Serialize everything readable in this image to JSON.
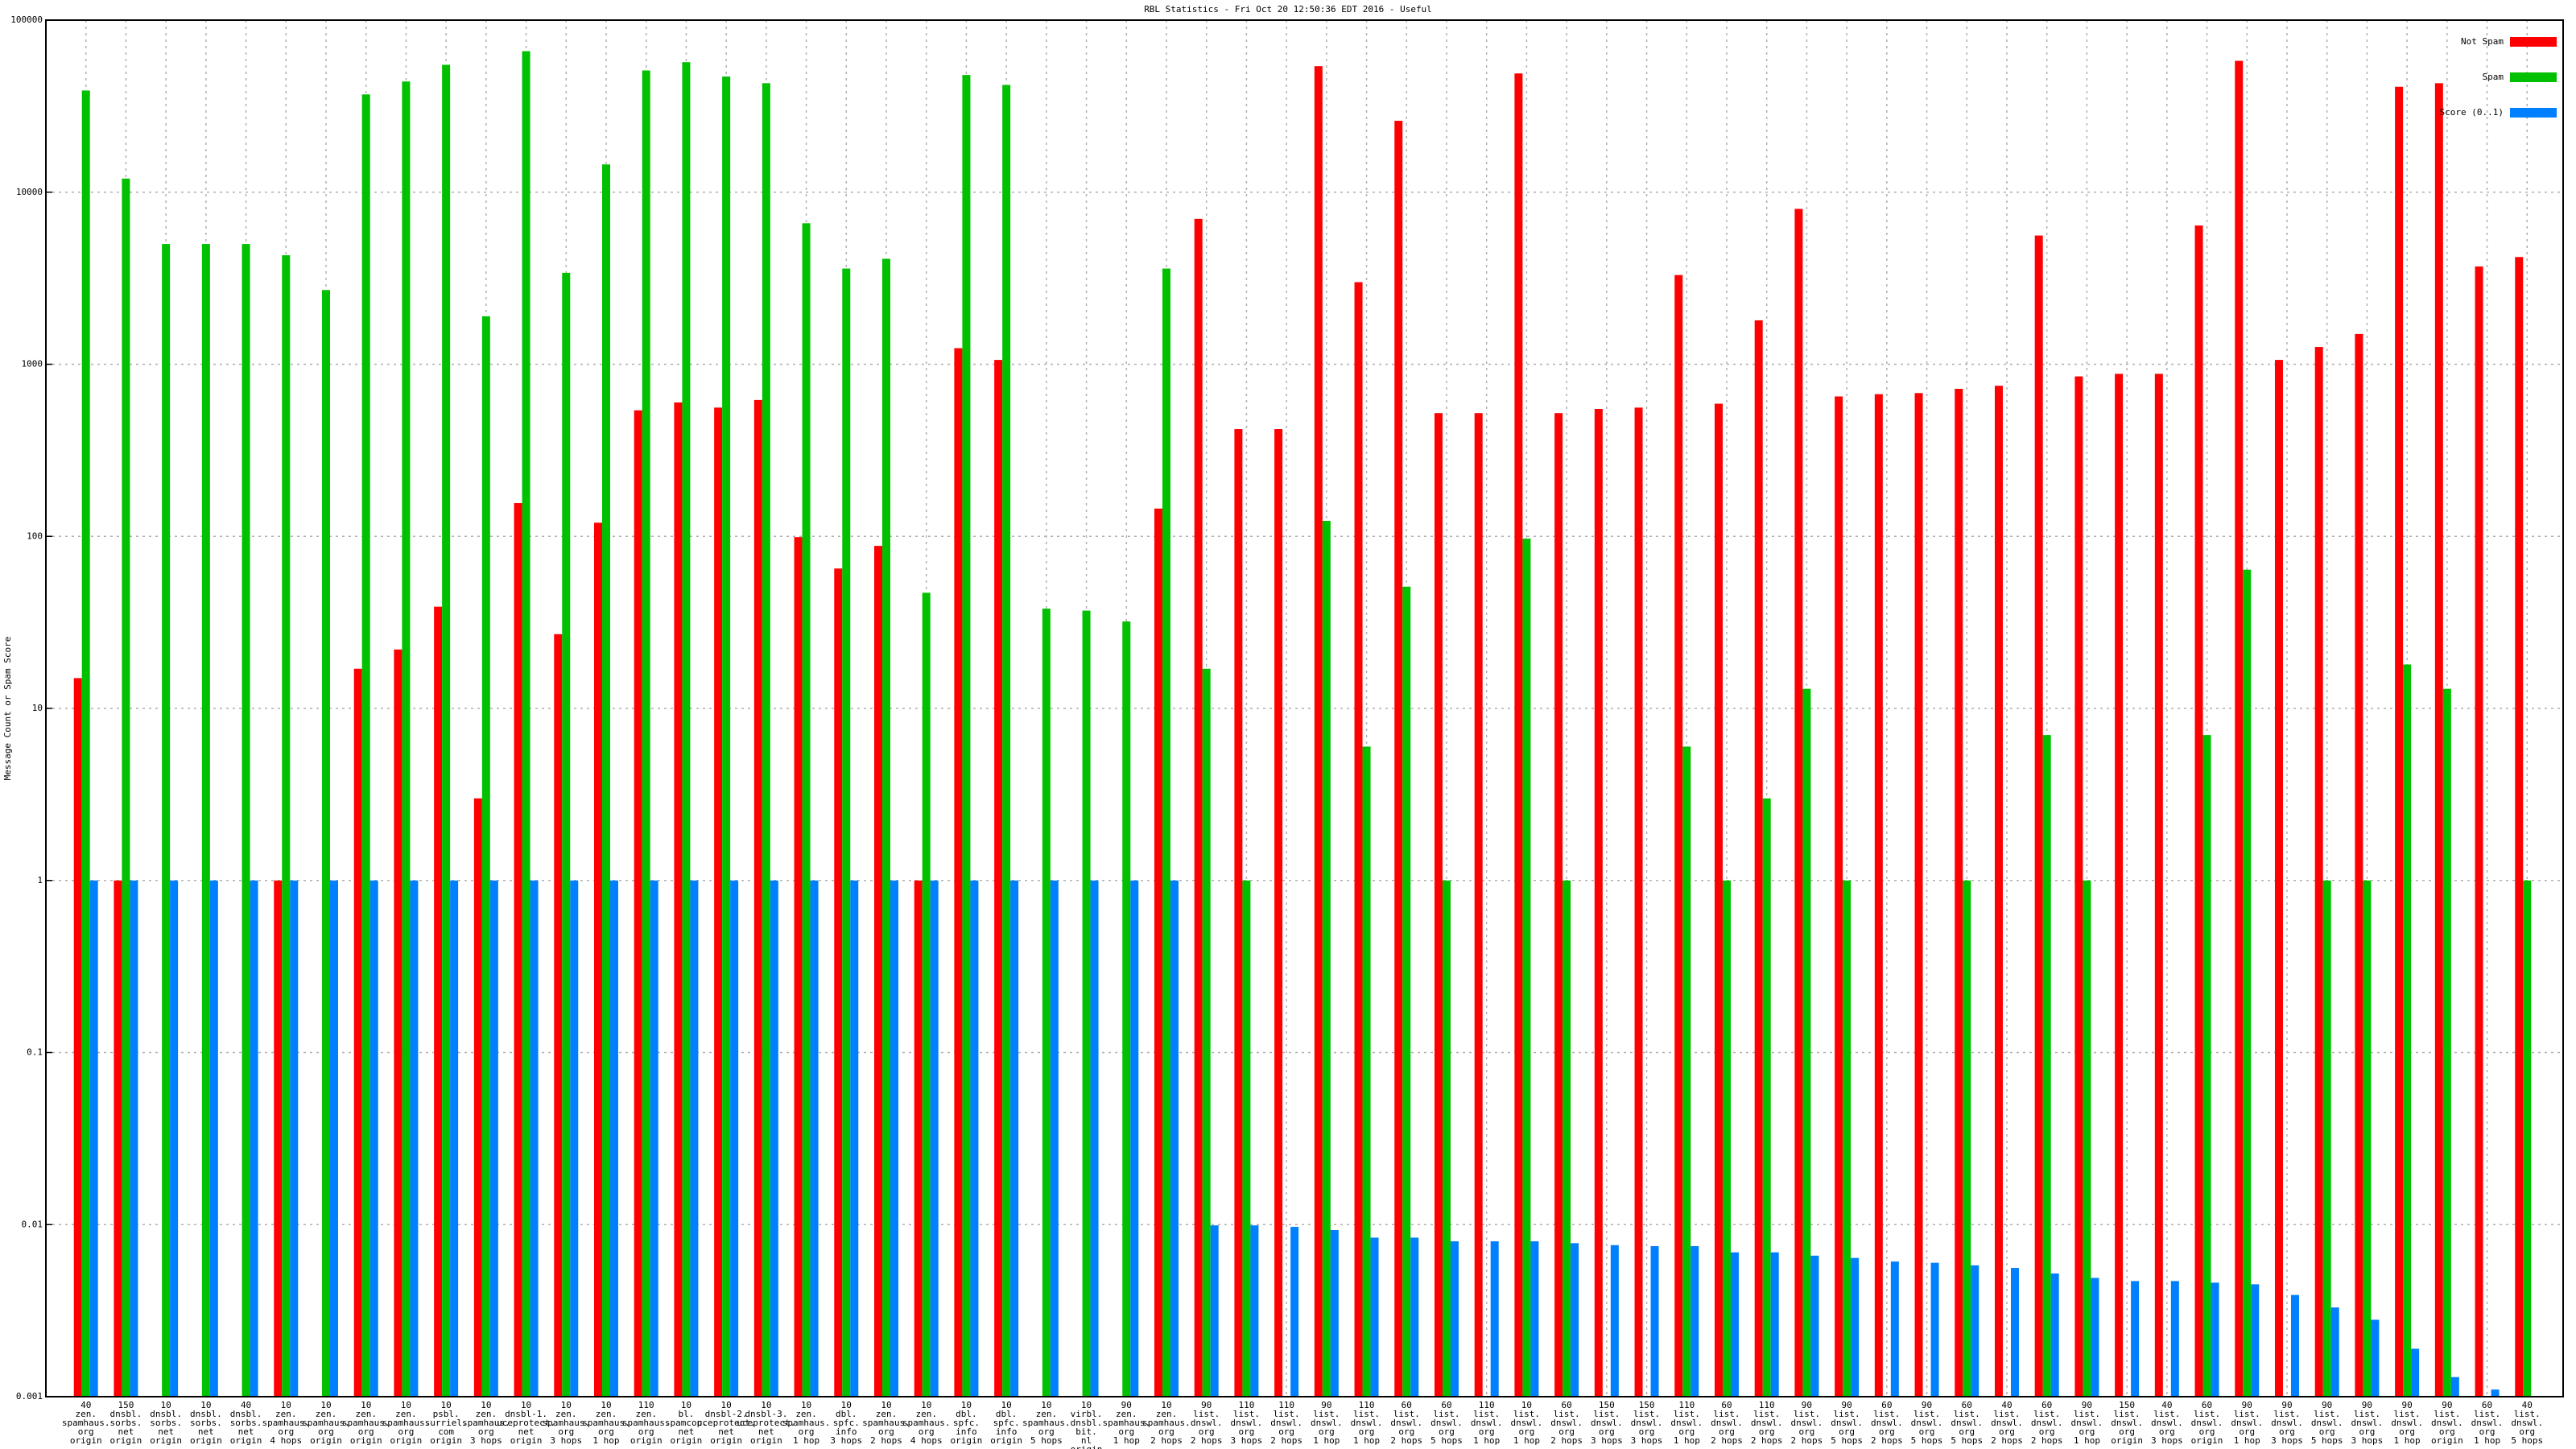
{
  "chart_data": {
    "type": "bar",
    "title": "RBL Statistics - Fri Oct 20 12:50:36 EDT 2016 - Useful",
    "y_label": "Message Count or Spam Score",
    "log_scale": true,
    "grid": true,
    "legend": "upper right",
    "ylim": [
      0.001,
      100000
    ],
    "yticks": [
      0.001,
      0.01,
      0.1,
      1,
      10,
      100,
      1000,
      10000,
      100000
    ],
    "categories": [
      "40\nzen.\nspamhaus.\norg\norigin",
      "150\ndnsbl.\nsorbs.\nnet\norigin",
      "10\ndnsbl.\nsorbs.\nnet\norigin",
      "10\ndnsbl.\nsorbs.\nnet\norigin",
      "40\ndnsbl.\nsorbs.\nnet\norigin",
      "10\nzen.\nspamhaus.\norg\n4 hops",
      "10\nzen.\nspamhaus.\norg\norigin",
      "10\nzen.\nspamhaus.\norg\norigin",
      "10\nzen.\nspamhaus.\norg\norigin",
      "10\npsbl.\nsurriel.\ncom\norigin",
      "10\nzen.\nspamhaus.\norg\n3 hops",
      "10\ndnsbl-1.\nuceprotect.\nnet\norigin",
      "10\nzen.\nspamhaus.\norg\n3 hops",
      "10\nzen.\nspamhaus.\norg\n1 hop",
      "110\nzen.\nspamhaus.\norg\norigin",
      "10\nbl.\nspamcop.\nnet\norigin",
      "10\ndnsbl-2.\nuceprotect.\nnet\norigin",
      "10\ndnsbl-3.\nuceprotect.\nnet\norigin",
      "10\nzen.\nspamhaus.\norg\n1 hop",
      "10\ndbl.\nspfc.\ninfo\n3 hops",
      "10\nzen.\nspamhaus.\norg\n2 hops",
      "10\nzen.\nspamhaus.\norg\n4 hops",
      "10\ndbl.\nspfc.\ninfo\norigin",
      "10\ndbl.\nspfc.\ninfo\norigin",
      "10\nzen.\nspamhaus.\norg\n5 hops",
      "10\nvirbl.\ndnsbl.\nbit.\nnl\norigin",
      "90\nzen.\nspamhaus.\norg\n1 hop",
      "10\nzen.\nspamhaus.\norg\n2 hops",
      "90\nlist.\ndnswl.\norg\n2 hops",
      "110\nlist.\ndnswl.\norg\n3 hops",
      "110\nlist.\ndnswl.\norg\n2 hops",
      "90\nlist.\ndnswl.\norg\n1 hop",
      "110\nlist.\ndnswl.\norg\n1 hop",
      "60\nlist.\ndnswl.\norg\n2 hops",
      "60\nlist.\ndnswl.\norg\n5 hops",
      "110\nlist.\ndnswl.\norg\n1 hop",
      "10\nlist.\ndnswl.\norg\n1 hop",
      "60\nlist.\ndnswl.\norg\n2 hops",
      "150\nlist.\ndnswl.\norg\n3 hops",
      "150\nlist.\ndnswl.\norg\n3 hops",
      "110\nlist.\ndnswl.\norg\n1 hop",
      "60\nlist.\ndnswl.\norg\n2 hops",
      "110\nlist.\ndnswl.\norg\n2 hops",
      "90\nlist.\ndnswl.\norg\n2 hops",
      "90\nlist.\ndnswl.\norg\n5 hops",
      "60\nlist.\ndnswl.\norg\n2 hops",
      "90\nlist.\ndnswl.\norg\n5 hops",
      "60\nlist.\ndnswl.\norg\n5 hops",
      "40\nlist.\ndnswl.\norg\n2 hops",
      "60\nlist.\ndnswl.\norg\n2 hops",
      "90\nlist.\ndnswl.\norg\n1 hop",
      "150\nlist.\ndnswl.\norg\norigin",
      "40\nlist.\ndnswl.\norg\n3 hops",
      "60\nlist.\ndnswl.\norg\norigin",
      "90\nlist.\ndnswl.\norg\n1 hop",
      "90\nlist.\ndnswl.\norg\n3 hops",
      "90\nlist.\ndnswl.\norg\n5 hops",
      "90\nlist.\ndnswl.\norg\n3 hops",
      "90\nlist.\ndnswl.\norg\n1 hop",
      "90\nlist.\ndnswl.\norg\norigin",
      "60\nlist.\ndnswl.\norg\n1 hop",
      "40\nlist.\ndnswl.\norg\n5 hops"
    ],
    "series": [
      {
        "name": "Not Spam",
        "color": "#ff0000",
        "values": [
          15,
          1,
          null,
          null,
          null,
          1,
          null,
          17,
          22,
          39,
          3,
          156,
          27,
          120,
          540,
          600,
          560,
          620,
          99,
          65,
          88,
          1,
          1240,
          1060,
          null,
          null,
          null,
          145,
          7000,
          420,
          420,
          54000,
          3000,
          26000,
          520,
          520,
          49000,
          520,
          550,
          560,
          3300,
          590,
          1800,
          8000,
          650,
          670,
          680,
          720,
          750,
          5600,
          850,
          880,
          880,
          6400,
          58000,
          1060,
          1260,
          1500,
          41000,
          43000,
          3700,
          4200
        ]
      },
      {
        "name": "Spam",
        "color": "#00c000",
        "values": [
          39000,
          12000,
          5000,
          5000,
          5000,
          4300,
          2700,
          37000,
          44000,
          55000,
          1900,
          66000,
          3400,
          14500,
          51000,
          57000,
          47000,
          43000,
          6600,
          3600,
          4100,
          47,
          48000,
          42000,
          38,
          37,
          32,
          3600,
          17,
          1,
          null,
          123,
          6,
          51,
          1,
          null,
          97,
          1,
          null,
          null,
          6,
          1,
          3,
          13,
          1,
          null,
          null,
          1,
          null,
          7,
          1,
          null,
          null,
          7,
          64,
          null,
          1,
          1,
          18,
          13,
          null,
          1
        ]
      },
      {
        "name": "Score (0..1)",
        "color": "#0080ff",
        "values": [
          1,
          1,
          1,
          1,
          1,
          1,
          1,
          1,
          1,
          1,
          1,
          1,
          1,
          1,
          1,
          1,
          1,
          1,
          1,
          1,
          1,
          1,
          1,
          1,
          1,
          1,
          1,
          1,
          0.0099,
          0.0099,
          0.0097,
          0.0093,
          0.0084,
          0.0084,
          0.008,
          0.008,
          0.008,
          0.0078,
          0.0076,
          0.0075,
          0.0075,
          0.0069,
          0.0069,
          0.0066,
          0.0064,
          0.0061,
          0.006,
          0.0058,
          0.0056,
          0.0052,
          0.0049,
          0.0047,
          0.0047,
          0.0046,
          0.0045,
          0.0039,
          0.0033,
          0.0028,
          0.0019,
          0.0013,
          0.0011,
          null
        ]
      }
    ]
  }
}
